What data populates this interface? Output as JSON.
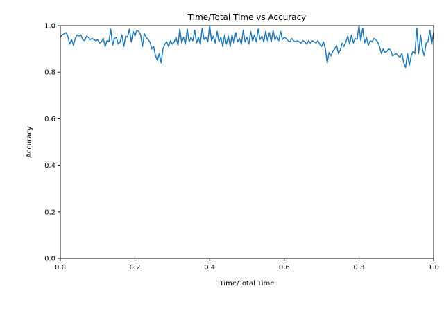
{
  "chart_data": {
    "type": "line",
    "title": "Time/Total Time vs Accuracy",
    "xlabel": "Time/Total Time",
    "ylabel": "Accuracy",
    "xlim": [
      0,
      1
    ],
    "ylim": [
      0,
      1
    ],
    "xticks": [
      0.0,
      0.2,
      0.4,
      0.6,
      0.8,
      1.0
    ],
    "xtick_labels": [
      "0.0",
      "0.2",
      "0.4",
      "0.6",
      "0.8",
      "1.0"
    ],
    "yticks": [
      0.0,
      0.2,
      0.4,
      0.6,
      0.8,
      1.0
    ],
    "ytick_labels": [
      "0.0",
      "0.2",
      "0.4",
      "0.6",
      "0.8",
      "1.0"
    ],
    "grid": false,
    "legend": "none",
    "color": "#1f77b4",
    "series": [
      {
        "x": [
          0.0,
          0.005,
          0.01,
          0.015,
          0.02,
          0.025,
          0.03,
          0.035,
          0.04,
          0.045,
          0.05,
          0.055,
          0.06,
          0.065,
          0.07,
          0.075,
          0.08,
          0.085,
          0.09,
          0.095,
          0.1,
          0.105,
          0.11,
          0.115,
          0.12,
          0.125,
          0.13,
          0.135,
          0.14,
          0.145,
          0.15,
          0.155,
          0.16,
          0.165,
          0.17,
          0.175,
          0.18,
          0.185,
          0.19,
          0.195,
          0.2,
          0.205,
          0.21,
          0.215,
          0.22,
          0.225,
          0.23,
          0.235,
          0.24,
          0.245,
          0.25,
          0.255,
          0.26,
          0.265,
          0.27,
          0.275,
          0.28,
          0.285,
          0.29,
          0.295,
          0.3,
          0.305,
          0.31,
          0.315,
          0.32,
          0.325,
          0.33,
          0.335,
          0.34,
          0.345,
          0.35,
          0.355,
          0.36,
          0.365,
          0.37,
          0.375,
          0.38,
          0.385,
          0.39,
          0.395,
          0.4,
          0.405,
          0.41,
          0.415,
          0.42,
          0.425,
          0.43,
          0.435,
          0.44,
          0.445,
          0.45,
          0.455,
          0.46,
          0.465,
          0.47,
          0.475,
          0.48,
          0.485,
          0.49,
          0.495,
          0.5,
          0.505,
          0.51,
          0.515,
          0.52,
          0.525,
          0.53,
          0.535,
          0.54,
          0.545,
          0.55,
          0.555,
          0.56,
          0.565,
          0.57,
          0.575,
          0.58,
          0.585,
          0.59,
          0.595,
          0.6,
          0.605,
          0.61,
          0.615,
          0.62,
          0.625,
          0.63,
          0.635,
          0.64,
          0.645,
          0.65,
          0.655,
          0.66,
          0.665,
          0.67,
          0.675,
          0.68,
          0.685,
          0.69,
          0.695,
          0.7,
          0.705,
          0.71,
          0.715,
          0.72,
          0.725,
          0.73,
          0.735,
          0.74,
          0.745,
          0.75,
          0.755,
          0.76,
          0.765,
          0.77,
          0.775,
          0.78,
          0.785,
          0.79,
          0.795,
          0.8,
          0.805,
          0.81,
          0.815,
          0.82,
          0.825,
          0.83,
          0.835,
          0.84,
          0.845,
          0.85,
          0.855,
          0.86,
          0.865,
          0.87,
          0.875,
          0.88,
          0.885,
          0.89,
          0.895,
          0.9,
          0.905,
          0.91,
          0.915,
          0.92,
          0.925,
          0.93,
          0.935,
          0.94,
          0.945,
          0.95,
          0.955,
          0.96,
          0.965,
          0.97,
          0.975,
          0.98,
          0.985,
          0.99,
          0.995,
          1.0
        ],
        "y": [
          0.95,
          0.96,
          0.965,
          0.97,
          0.955,
          0.92,
          0.94,
          0.915,
          0.945,
          0.96,
          0.955,
          0.96,
          0.94,
          0.935,
          0.955,
          0.95,
          0.94,
          0.945,
          0.94,
          0.935,
          0.94,
          0.925,
          0.93,
          0.945,
          0.91,
          0.935,
          0.93,
          0.985,
          0.915,
          0.945,
          0.95,
          0.92,
          0.93,
          0.96,
          0.91,
          0.955,
          0.95,
          0.985,
          0.93,
          0.975,
          0.955,
          0.98,
          0.975,
          0.96,
          0.91,
          0.965,
          0.95,
          0.94,
          0.93,
          0.9,
          0.91,
          0.87,
          0.85,
          0.88,
          0.84,
          0.9,
          0.92,
          0.93,
          0.91,
          0.935,
          0.92,
          0.93,
          0.95,
          0.915,
          0.985,
          0.925,
          0.95,
          0.92,
          0.985,
          0.93,
          0.95,
          0.935,
          0.98,
          0.925,
          0.95,
          0.92,
          0.99,
          0.94,
          0.95,
          0.93,
          1.0,
          0.935,
          0.955,
          0.925,
          0.975,
          0.93,
          0.95,
          0.91,
          0.96,
          0.92,
          0.955,
          0.91,
          0.96,
          0.925,
          0.97,
          0.93,
          0.945,
          0.92,
          0.98,
          0.93,
          0.95,
          0.92,
          0.975,
          0.935,
          0.96,
          0.93,
          0.985,
          0.94,
          0.955,
          0.93,
          0.975,
          0.935,
          0.97,
          0.93,
          0.98,
          0.94,
          0.955,
          0.935,
          0.975,
          0.94,
          0.95,
          0.945,
          0.935,
          0.93,
          0.945,
          0.935,
          0.93,
          0.935,
          0.93,
          0.925,
          0.935,
          0.93,
          0.92,
          0.935,
          0.925,
          0.935,
          0.93,
          0.925,
          0.935,
          0.92,
          0.91,
          0.93,
          0.9,
          0.84,
          0.885,
          0.87,
          0.89,
          0.9,
          0.915,
          0.88,
          0.895,
          0.925,
          0.91,
          0.93,
          0.955,
          0.92,
          0.96,
          0.925,
          0.945,
          0.94,
          1.0,
          0.935,
          0.99,
          0.925,
          0.95,
          0.915,
          0.935,
          0.93,
          0.945,
          0.94,
          0.93,
          0.91,
          0.88,
          0.9,
          0.885,
          0.89,
          0.9,
          0.895,
          0.87,
          0.875,
          0.88,
          0.87,
          0.865,
          0.88,
          0.84,
          0.82,
          0.88,
          0.83,
          0.87,
          0.89,
          0.88,
          0.99,
          0.88,
          0.96,
          0.9,
          0.87,
          0.925,
          0.93,
          0.98,
          0.92,
          0.97
        ]
      }
    ]
  }
}
